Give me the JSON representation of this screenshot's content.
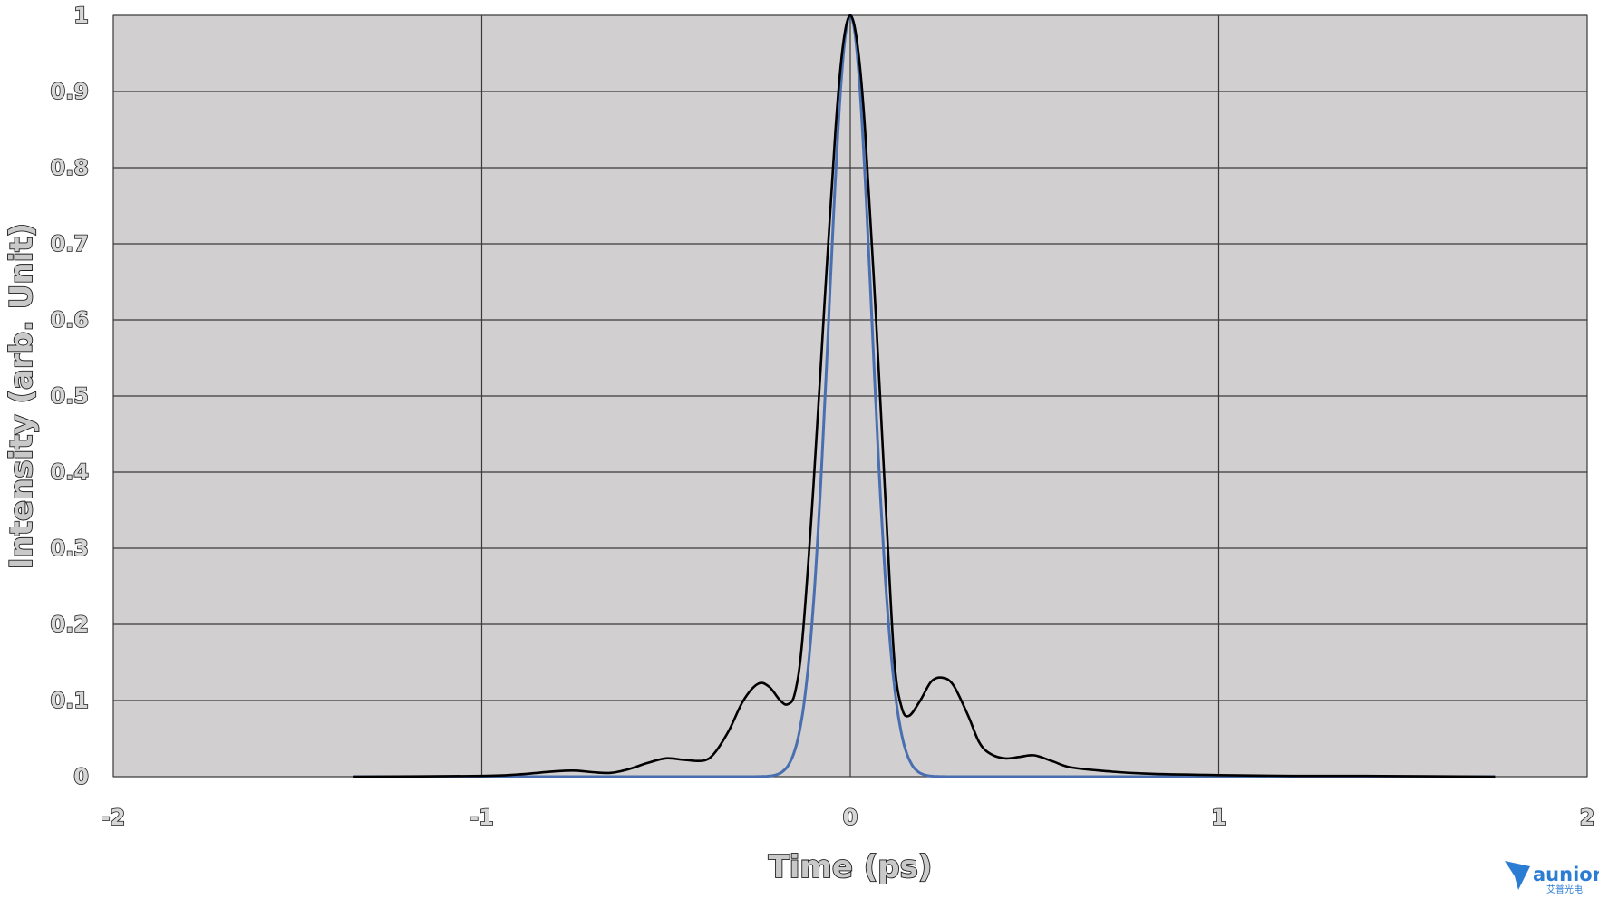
{
  "chart_data": {
    "type": "line",
    "title": "",
    "xlabel": "Time (ps)",
    "ylabel": "Intensity (arb. Unit)",
    "xlim": [
      -2,
      2
    ],
    "ylim": [
      0,
      1
    ],
    "x_ticks": [
      "-2",
      "-1",
      "0",
      "1",
      "2"
    ],
    "y_ticks": [
      "0",
      "0.1",
      "0.2",
      "0.3",
      "0.4",
      "0.5",
      "0.6",
      "0.7",
      "0.8",
      "0.9",
      "1"
    ],
    "grid": true,
    "legend": "none",
    "series": [
      {
        "color": "#000000",
        "points": [
          [
            -1.35,
            0.0
          ],
          [
            -1.0,
            0.001
          ],
          [
            -0.9,
            0.003
          ],
          [
            -0.8,
            0.007
          ],
          [
            -0.75,
            0.008
          ],
          [
            -0.7,
            0.006
          ],
          [
            -0.65,
            0.005
          ],
          [
            -0.6,
            0.01
          ],
          [
            -0.55,
            0.018
          ],
          [
            -0.5,
            0.024
          ],
          [
            -0.45,
            0.022
          ],
          [
            -0.4,
            0.021
          ],
          [
            -0.37,
            0.03
          ],
          [
            -0.33,
            0.06
          ],
          [
            -0.29,
            0.1
          ],
          [
            -0.25,
            0.122
          ],
          [
            -0.22,
            0.118
          ],
          [
            -0.19,
            0.1
          ],
          [
            -0.17,
            0.095
          ],
          [
            -0.15,
            0.11
          ],
          [
            -0.13,
            0.18
          ],
          [
            -0.1,
            0.38
          ],
          [
            -0.07,
            0.62
          ],
          [
            -0.04,
            0.85
          ],
          [
            -0.02,
            0.96
          ],
          [
            0.0,
            1.0
          ],
          [
            0.02,
            0.96
          ],
          [
            0.04,
            0.85
          ],
          [
            0.07,
            0.6
          ],
          [
            0.1,
            0.32
          ],
          [
            0.12,
            0.15
          ],
          [
            0.14,
            0.09
          ],
          [
            0.16,
            0.08
          ],
          [
            0.19,
            0.1
          ],
          [
            0.22,
            0.125
          ],
          [
            0.25,
            0.13
          ],
          [
            0.28,
            0.12
          ],
          [
            0.32,
            0.08
          ],
          [
            0.35,
            0.045
          ],
          [
            0.38,
            0.03
          ],
          [
            0.42,
            0.024
          ],
          [
            0.46,
            0.026
          ],
          [
            0.5,
            0.028
          ],
          [
            0.55,
            0.02
          ],
          [
            0.6,
            0.012
          ],
          [
            0.7,
            0.007
          ],
          [
            0.8,
            0.004
          ],
          [
            1.0,
            0.002
          ],
          [
            1.2,
            0.001
          ],
          [
            1.4,
            0.001
          ],
          [
            1.75,
            0.0
          ]
        ]
      },
      {
        "color": "#4a6fb0",
        "gaussian": {
          "center": 0.0,
          "peak": 1.0,
          "sigma": 0.058
        },
        "range": [
          -1.35,
          1.75
        ]
      }
    ]
  },
  "logo": {
    "text": "aunion",
    "subtext": "艾普光电"
  }
}
